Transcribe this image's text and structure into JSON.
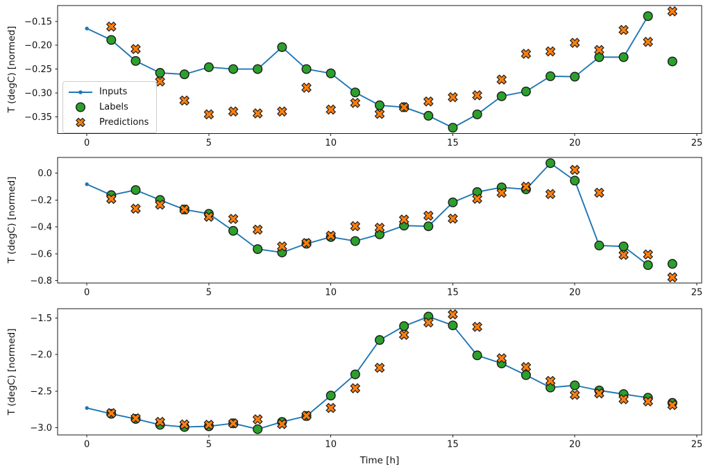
{
  "figure": {
    "xlabel": "Time [h]",
    "colors": {
      "inputs": "#1f77b4",
      "labels": "#2ca02c",
      "predictions": "#ff7f0e",
      "marker_edge": "#1a1a1a"
    },
    "legend": {
      "position": "upper-left-of-first-subplot",
      "items": [
        {
          "label": "Inputs",
          "marker": "line-with-dot"
        },
        {
          "label": "Labels",
          "marker": "filled-circle"
        },
        {
          "label": "Predictions",
          "marker": "filled-x"
        }
      ]
    }
  },
  "chart_data": [
    {
      "id": "subplot-1",
      "type": "line",
      "ylabel": "T (degC) [normed]",
      "grid": false,
      "xlim": [
        -1.2,
        25.2
      ],
      "ylim": [
        -0.3852,
        -0.1168
      ],
      "xticks": [
        {
          "v": 0,
          "label": "0"
        },
        {
          "v": 5,
          "label": "5"
        },
        {
          "v": 10,
          "label": "10"
        },
        {
          "v": 15,
          "label": "15"
        },
        {
          "v": 20,
          "label": "20"
        },
        {
          "v": 25,
          "label": "25"
        }
      ],
      "yticks": [
        {
          "v": -0.15,
          "label": "−0.15"
        },
        {
          "v": -0.2,
          "label": "−0.20"
        },
        {
          "v": -0.25,
          "label": "−0.25"
        },
        {
          "v": -0.3,
          "label": "−0.30"
        },
        {
          "v": -0.35,
          "label": "−0.35"
        }
      ],
      "series": [
        {
          "name": "Inputs",
          "type": "line",
          "marker": "dot",
          "x": [
            0,
            1,
            2,
            3,
            4,
            5,
            6,
            7,
            8,
            9,
            10,
            11,
            12,
            13,
            14,
            15,
            16,
            17,
            18,
            19,
            20,
            21,
            22,
            23
          ],
          "y": [
            -0.165,
            -0.189,
            -0.233,
            -0.258,
            -0.261,
            -0.246,
            -0.25,
            -0.25,
            -0.204,
            -0.25,
            -0.259,
            -0.299,
            -0.326,
            -0.33,
            -0.348,
            -0.373,
            -0.345,
            -0.307,
            -0.297,
            -0.265,
            -0.266,
            -0.225,
            -0.225,
            -0.139
          ]
        },
        {
          "name": "Labels",
          "type": "scatter",
          "marker": "circle",
          "x": [
            1,
            2,
            3,
            4,
            5,
            6,
            7,
            8,
            9,
            10,
            11,
            12,
            13,
            14,
            15,
            16,
            17,
            18,
            19,
            20,
            21,
            22,
            23,
            24
          ],
          "y": [
            -0.189,
            -0.233,
            -0.258,
            -0.261,
            -0.246,
            -0.25,
            -0.25,
            -0.204,
            -0.25,
            -0.259,
            -0.299,
            -0.326,
            -0.33,
            -0.348,
            -0.373,
            -0.345,
            -0.307,
            -0.297,
            -0.265,
            -0.266,
            -0.225,
            -0.225,
            -0.139,
            -0.234
          ]
        },
        {
          "name": "Predictions",
          "type": "scatter",
          "marker": "X",
          "x": [
            1,
            2,
            3,
            4,
            5,
            6,
            7,
            8,
            9,
            10,
            11,
            12,
            13,
            14,
            15,
            16,
            17,
            18,
            19,
            20,
            21,
            22,
            23,
            24
          ],
          "y": [
            -0.161,
            -0.208,
            -0.276,
            -0.316,
            -0.345,
            -0.339,
            -0.343,
            -0.339,
            -0.289,
            -0.335,
            -0.321,
            -0.344,
            -0.33,
            -0.318,
            -0.309,
            -0.305,
            -0.272,
            -0.218,
            -0.213,
            -0.195,
            -0.21,
            -0.168,
            -0.193,
            -0.129
          ]
        }
      ]
    },
    {
      "id": "subplot-2",
      "type": "line",
      "ylabel": "T (degC) [normed]",
      "grid": false,
      "xlim": [
        -1.2,
        25.2
      ],
      "ylim": [
        -0.8175,
        0.1175
      ],
      "xticks": [
        {
          "v": 0,
          "label": "0"
        },
        {
          "v": 5,
          "label": "5"
        },
        {
          "v": 10,
          "label": "10"
        },
        {
          "v": 15,
          "label": "15"
        },
        {
          "v": 20,
          "label": "20"
        },
        {
          "v": 25,
          "label": "25"
        }
      ],
      "yticks": [
        {
          "v": 0.0,
          "label": "0.0"
        },
        {
          "v": -0.2,
          "label": "−0.2"
        },
        {
          "v": -0.4,
          "label": "−0.4"
        },
        {
          "v": -0.6,
          "label": "−0.6"
        },
        {
          "v": -0.8,
          "label": "−0.8"
        }
      ],
      "series": [
        {
          "name": "Inputs",
          "type": "line",
          "marker": "dot",
          "x": [
            0,
            1,
            2,
            3,
            4,
            5,
            6,
            7,
            8,
            9,
            10,
            11,
            12,
            13,
            14,
            15,
            16,
            17,
            18,
            19,
            20,
            21,
            22,
            23
          ],
          "y": [
            -0.082,
            -0.163,
            -0.125,
            -0.199,
            -0.27,
            -0.302,
            -0.429,
            -0.565,
            -0.59,
            -0.525,
            -0.475,
            -0.505,
            -0.455,
            -0.39,
            -0.395,
            -0.217,
            -0.14,
            -0.105,
            -0.12,
            0.075,
            -0.055,
            -0.538,
            -0.545,
            -0.684
          ]
        },
        {
          "name": "Labels",
          "type": "scatter",
          "marker": "circle",
          "x": [
            1,
            2,
            3,
            4,
            5,
            6,
            7,
            8,
            9,
            10,
            11,
            12,
            13,
            14,
            15,
            16,
            17,
            18,
            19,
            20,
            21,
            22,
            23,
            24
          ],
          "y": [
            -0.163,
            -0.125,
            -0.199,
            -0.27,
            -0.302,
            -0.429,
            -0.565,
            -0.59,
            -0.525,
            -0.475,
            -0.505,
            -0.455,
            -0.39,
            -0.395,
            -0.217,
            -0.14,
            -0.105,
            -0.12,
            0.075,
            -0.055,
            -0.538,
            -0.545,
            -0.684,
            -0.675
          ]
        },
        {
          "name": "Predictions",
          "type": "scatter",
          "marker": "X",
          "x": [
            1,
            2,
            3,
            4,
            5,
            6,
            7,
            8,
            9,
            10,
            11,
            12,
            13,
            14,
            15,
            16,
            17,
            18,
            19,
            20,
            21,
            22,
            23,
            24
          ],
          "y": [
            -0.191,
            -0.264,
            -0.234,
            -0.27,
            -0.324,
            -0.34,
            -0.42,
            -0.545,
            -0.52,
            -0.465,
            -0.394,
            -0.406,
            -0.345,
            -0.316,
            -0.338,
            -0.19,
            -0.146,
            -0.1,
            -0.155,
            0.025,
            -0.145,
            -0.608,
            -0.605,
            -0.775
          ]
        }
      ]
    },
    {
      "id": "subplot-3",
      "type": "line",
      "ylabel": "T (degC) [normed]",
      "grid": false,
      "xlim": [
        -1.2,
        25.2
      ],
      "ylim": [
        -3.0985,
        -1.3715
      ],
      "xticks": [
        {
          "v": 0,
          "label": "0"
        },
        {
          "v": 5,
          "label": "5"
        },
        {
          "v": 10,
          "label": "10"
        },
        {
          "v": 15,
          "label": "15"
        },
        {
          "v": 20,
          "label": "20"
        },
        {
          "v": 25,
          "label": "25"
        }
      ],
      "yticks": [
        {
          "v": -1.5,
          "label": "−1.5"
        },
        {
          "v": -2.0,
          "label": "−2.0"
        },
        {
          "v": -2.5,
          "label": "−2.5"
        },
        {
          "v": -3.0,
          "label": "−3.0"
        }
      ],
      "series": [
        {
          "name": "Inputs",
          "type": "line",
          "marker": "dot",
          "x": [
            0,
            1,
            2,
            3,
            4,
            5,
            6,
            7,
            8,
            9,
            10,
            11,
            12,
            13,
            14,
            15,
            16,
            17,
            18,
            19,
            20,
            21,
            22,
            23
          ],
          "y": [
            -2.73,
            -2.81,
            -2.88,
            -2.96,
            -2.99,
            -2.98,
            -2.94,
            -3.02,
            -2.92,
            -2.84,
            -2.56,
            -2.27,
            -1.8,
            -1.61,
            -1.48,
            -1.6,
            -2.01,
            -2.12,
            -2.28,
            -2.45,
            -2.42,
            -2.49,
            -2.54,
            -2.59
          ]
        },
        {
          "name": "Labels",
          "type": "scatter",
          "marker": "circle",
          "x": [
            1,
            2,
            3,
            4,
            5,
            6,
            7,
            8,
            9,
            10,
            11,
            12,
            13,
            14,
            15,
            16,
            17,
            18,
            19,
            20,
            21,
            22,
            23,
            24
          ],
          "y": [
            -2.81,
            -2.88,
            -2.96,
            -2.99,
            -2.98,
            -2.94,
            -3.02,
            -2.92,
            -2.84,
            -2.56,
            -2.27,
            -1.8,
            -1.61,
            -1.48,
            -1.6,
            -2.01,
            -2.12,
            -2.28,
            -2.45,
            -2.42,
            -2.49,
            -2.54,
            -2.59,
            -2.66
          ]
        },
        {
          "name": "Predictions",
          "type": "scatter",
          "marker": "X",
          "x": [
            1,
            2,
            3,
            4,
            5,
            6,
            7,
            8,
            9,
            10,
            11,
            12,
            13,
            14,
            15,
            16,
            17,
            18,
            19,
            20,
            21,
            22,
            23,
            24
          ],
          "y": [
            -2.8,
            -2.87,
            -2.92,
            -2.955,
            -2.96,
            -2.94,
            -2.885,
            -2.95,
            -2.835,
            -2.73,
            -2.46,
            -2.18,
            -1.73,
            -1.56,
            -1.45,
            -1.62,
            -2.05,
            -2.17,
            -2.36,
            -2.55,
            -2.53,
            -2.61,
            -2.64,
            -2.69
          ]
        }
      ]
    }
  ]
}
